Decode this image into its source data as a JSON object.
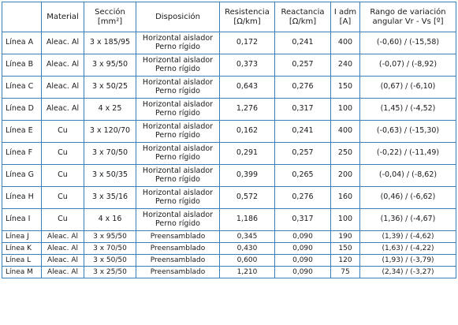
{
  "headers": {
    "material": "Material",
    "seccion": "Sección",
    "seccion_unit": "[mm²]",
    "disposicion": "Disposición",
    "resistencia": "Resistencia",
    "resistencia_unit": "[Ω/km]",
    "reactancia": "Reactancia",
    "reactancia_unit": "[Ω/km]",
    "iadm": "I adm",
    "iadm_unit": "[A]",
    "rango": "Rango de variación",
    "rango_unit": "angular Vr - Vs [º]"
  },
  "rows": [
    {
      "linea": "Línea A",
      "material": "Aleac. Al",
      "seccion": "3 x 185/95",
      "disp1": "Horizontal aislador",
      "disp2": "Perno rígido",
      "resistencia": "0,172",
      "reactancia": "0,241",
      "iadm": "400",
      "rango": "(-0,60) / (-15,58)"
    },
    {
      "linea": "Línea B",
      "material": "Aleac. Al",
      "seccion": "3 x 95/50",
      "disp1": "Horizontal aislador",
      "disp2": "Perno rígido",
      "resistencia": "0,373",
      "reactancia": "0,257",
      "iadm": "240",
      "rango": "(-0,07) / (-8,92)"
    },
    {
      "linea": "Línea C",
      "material": "Aleac. Al",
      "seccion": "3 x 50/25",
      "disp1": "Horizontal aislador",
      "disp2": "Perno rígido",
      "resistencia": "0,643",
      "reactancia": "0,276",
      "iadm": "150",
      "rango": "(0,67) / (-6,10)"
    },
    {
      "linea": "Línea D",
      "material": "Aleac. Al",
      "seccion": "4 x 25",
      "disp1": "Horizontal aislador",
      "disp2": "Perno rígido",
      "resistencia": "1,276",
      "reactancia": "0,317",
      "iadm": "100",
      "rango": "(1,45) / (-4,52)"
    },
    {
      "linea": "Línea E",
      "material": "Cu",
      "seccion": "3 x 120/70",
      "disp1": "Horizontal aislador",
      "disp2": "Perno rígido",
      "resistencia": "0,162",
      "reactancia": "0,241",
      "iadm": "400",
      "rango": "(-0,63) / (-15,30)"
    },
    {
      "linea": "Línea F",
      "material": "Cu",
      "seccion": "3 x 70/50",
      "disp1": "Horizontal aislador",
      "disp2": "Perno rígido",
      "resistencia": "0,291",
      "reactancia": "0,257",
      "iadm": "250",
      "rango": "(-0,22) / (-11,49)"
    },
    {
      "linea": "Línea G",
      "material": "Cu",
      "seccion": "3 x 50/35",
      "disp1": "Horizontal aislador",
      "disp2": "Perno rígido",
      "resistencia": "0,399",
      "reactancia": "0,265",
      "iadm": "200",
      "rango": "(-0,04) / (-8,62)"
    },
    {
      "linea": "Línea H",
      "material": "Cu",
      "seccion": "3 x 35/16",
      "disp1": "Horizontal aislador",
      "disp2": "Perno rígido",
      "resistencia": "0,572",
      "reactancia": "0,276",
      "iadm": "160",
      "rango": "(0,46) / (-6,62)"
    },
    {
      "linea": "Línea I",
      "material": "Cu",
      "seccion": "4 x 16",
      "disp1": "Horizontal aislador",
      "disp2": "Perno rígido",
      "resistencia": "1,186",
      "reactancia": "0,317",
      "iadm": "100",
      "rango": "(1,36) / (-4,67)"
    },
    {
      "linea": "Línea J",
      "material": "Aleac. Al",
      "seccion": "3 x 95/50",
      "disp1": "Preensamblado",
      "disp2": "",
      "resistencia": "0,345",
      "reactancia": "0,090",
      "iadm": "190",
      "rango": "(1,39) / (-4,62)"
    },
    {
      "linea": "Línea K",
      "material": "Aleac. Al",
      "seccion": "3 x 70/50",
      "disp1": "Preensamblado",
      "disp2": "",
      "resistencia": "0,430",
      "reactancia": "0,090",
      "iadm": "150",
      "rango": "(1,63) / (-4,22)"
    },
    {
      "linea": "Línea L",
      "material": "Aleac. Al",
      "seccion": "3 x 50/50",
      "disp1": "Preensamblado",
      "disp2": "",
      "resistencia": "0,600",
      "reactancia": "0,090",
      "iadm": "120",
      "rango": "(1,93) / (-3,79)"
    },
    {
      "linea": "Línea M",
      "material": "Aleac. Al",
      "seccion": "3 x 25/50",
      "disp1": "Preensamblado",
      "disp2": "",
      "resistencia": "1,210",
      "reactancia": "0,090",
      "iadm": "75",
      "rango": "(2,34) / (-3,27)"
    }
  ]
}
